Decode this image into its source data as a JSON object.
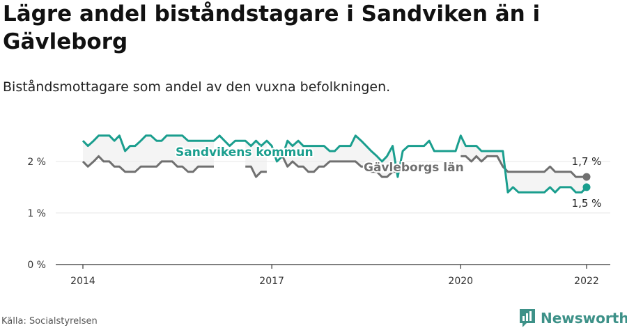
{
  "title": "Lägre andel biståndstagare i Sandviken än i Gävleborg",
  "subtitle": "Biståndsmottagare som andel av den vuxna befolkningen.",
  "source": "Källa: Socialstyrelsen",
  "brand": {
    "name": "Newsworthy",
    "color": "#3d9188"
  },
  "chart_data": {
    "type": "line",
    "x_ticks": [
      "2014",
      "2017",
      "2020",
      "2022"
    ],
    "y_ticks": [
      "0 %",
      "1 %",
      "2 %"
    ],
    "ylim": [
      0,
      2.7
    ],
    "xlim": [
      2013.6,
      2022.4
    ],
    "series": [
      {
        "name": "Sandvikens kommun",
        "color": "#1a9e8e",
        "end_label": "1,5 %",
        "points": [
          [
            2014.0,
            2.4
          ],
          [
            2014.08,
            2.3
          ],
          [
            2014.17,
            2.4
          ],
          [
            2014.25,
            2.5
          ],
          [
            2014.33,
            2.5
          ],
          [
            2014.42,
            2.5
          ],
          [
            2014.5,
            2.4
          ],
          [
            2014.58,
            2.5
          ],
          [
            2014.67,
            2.2
          ],
          [
            2014.75,
            2.3
          ],
          [
            2014.83,
            2.3
          ],
          [
            2014.92,
            2.4
          ],
          [
            2015.0,
            2.5
          ],
          [
            2015.08,
            2.5
          ],
          [
            2015.17,
            2.4
          ],
          [
            2015.25,
            2.4
          ],
          [
            2015.33,
            2.5
          ],
          [
            2015.42,
            2.5
          ],
          [
            2015.5,
            2.5
          ],
          [
            2015.58,
            2.5
          ],
          [
            2015.67,
            2.4
          ],
          [
            2015.75,
            2.4
          ],
          [
            2015.83,
            2.4
          ],
          [
            2015.92,
            2.4
          ],
          [
            2016.0,
            2.4
          ],
          [
            2016.08,
            2.4
          ],
          [
            2016.17,
            2.5
          ],
          [
            2016.25,
            2.4
          ],
          [
            2016.33,
            2.3
          ],
          [
            2016.42,
            2.4
          ],
          [
            2016.5,
            2.4
          ],
          [
            2016.58,
            2.4
          ],
          [
            2016.67,
            2.3
          ],
          [
            2016.75,
            2.4
          ],
          [
            2016.83,
            2.3
          ],
          [
            2016.92,
            2.4
          ],
          [
            2017.0,
            2.3
          ],
          [
            2017.08,
            2.0
          ],
          [
            2017.17,
            2.1
          ],
          [
            2017.25,
            2.4
          ],
          [
            2017.33,
            2.3
          ],
          [
            2017.42,
            2.4
          ],
          [
            2017.5,
            2.3
          ],
          [
            2017.58,
            2.3
          ],
          [
            2017.67,
            2.3
          ],
          [
            2017.75,
            2.3
          ],
          [
            2017.83,
            2.3
          ],
          [
            2017.92,
            2.2
          ],
          [
            2018.0,
            2.2
          ],
          [
            2018.08,
            2.3
          ],
          [
            2018.17,
            2.3
          ],
          [
            2018.25,
            2.3
          ],
          [
            2018.33,
            2.5
          ],
          [
            2018.42,
            2.4
          ],
          [
            2018.5,
            2.3
          ],
          [
            2018.58,
            2.2
          ],
          [
            2018.67,
            2.1
          ],
          [
            2018.75,
            2.0
          ],
          [
            2018.83,
            2.1
          ],
          [
            2018.92,
            2.3
          ],
          [
            2019.0,
            1.7
          ],
          [
            2019.08,
            2.2
          ],
          [
            2019.17,
            2.3
          ],
          [
            2019.25,
            2.3
          ],
          [
            2019.33,
            2.3
          ],
          [
            2019.42,
            2.3
          ],
          [
            2019.5,
            2.4
          ],
          [
            2019.58,
            2.2
          ],
          [
            2019.67,
            2.2
          ],
          [
            2019.75,
            2.2
          ],
          [
            2019.83,
            2.2
          ],
          [
            2019.92,
            2.2
          ],
          [
            2020.0,
            2.5
          ],
          [
            2020.08,
            2.3
          ],
          [
            2020.17,
            2.3
          ],
          [
            2020.25,
            2.3
          ],
          [
            2020.33,
            2.2
          ],
          [
            2020.42,
            2.2
          ],
          [
            2020.5,
            2.2
          ],
          [
            2020.58,
            2.2
          ],
          [
            2020.67,
            2.2
          ],
          [
            2020.75,
            1.4
          ],
          [
            2020.83,
            1.5
          ],
          [
            2020.92,
            1.4
          ],
          [
            2021.0,
            1.4
          ],
          [
            2021.08,
            1.4
          ],
          [
            2021.17,
            1.4
          ],
          [
            2021.25,
            1.4
          ],
          [
            2021.33,
            1.4
          ],
          [
            2021.42,
            1.5
          ],
          [
            2021.5,
            1.4
          ],
          [
            2021.58,
            1.5
          ],
          [
            2021.67,
            1.5
          ],
          [
            2021.75,
            1.5
          ],
          [
            2021.83,
            1.4
          ],
          [
            2021.92,
            1.4
          ],
          [
            2022.0,
            1.5
          ]
        ]
      },
      {
        "name": "Gävleborgs län",
        "color": "#707070",
        "end_label": "1,7 %",
        "points": [
          [
            2014.0,
            2.0
          ],
          [
            2014.08,
            1.9
          ],
          [
            2014.17,
            2.0
          ],
          [
            2014.25,
            2.1
          ],
          [
            2014.33,
            2.0
          ],
          [
            2014.42,
            2.0
          ],
          [
            2014.5,
            1.9
          ],
          [
            2014.58,
            1.9
          ],
          [
            2014.67,
            1.8
          ],
          [
            2014.75,
            1.8
          ],
          [
            2014.83,
            1.8
          ],
          [
            2014.92,
            1.9
          ],
          [
            2015.0,
            1.9
          ],
          [
            2015.08,
            1.9
          ],
          [
            2015.17,
            1.9
          ],
          [
            2015.25,
            2.0
          ],
          [
            2015.33,
            2.0
          ],
          [
            2015.42,
            2.0
          ],
          [
            2015.5,
            1.9
          ],
          [
            2015.58,
            1.9
          ],
          [
            2015.67,
            1.8
          ],
          [
            2015.75,
            1.8
          ],
          [
            2015.83,
            1.9
          ],
          [
            2015.92,
            1.9
          ],
          [
            2016.0,
            1.9
          ],
          [
            2016.08,
            1.9
          ],
          [
            null,
            null
          ],
          [
            2016.58,
            1.9
          ],
          [
            2016.67,
            1.9
          ],
          [
            2016.75,
            1.7
          ],
          [
            2016.83,
            1.8
          ],
          [
            2016.92,
            1.8
          ],
          [
            null,
            null
          ],
          [
            2017.17,
            2.1
          ],
          [
            2017.25,
            1.9
          ],
          [
            2017.33,
            2.0
          ],
          [
            2017.42,
            1.9
          ],
          [
            2017.5,
            1.9
          ],
          [
            2017.58,
            1.8
          ],
          [
            2017.67,
            1.8
          ],
          [
            2017.75,
            1.9
          ],
          [
            2017.83,
            1.9
          ],
          [
            2017.92,
            2.0
          ],
          [
            2018.0,
            2.0
          ],
          [
            2018.08,
            2.0
          ],
          [
            2018.17,
            2.0
          ],
          [
            2018.25,
            2.0
          ],
          [
            2018.33,
            2.0
          ],
          [
            2018.42,
            1.9
          ],
          [
            2018.5,
            1.9
          ],
          [
            2018.58,
            1.8
          ],
          [
            2018.67,
            1.8
          ],
          [
            2018.75,
            1.7
          ],
          [
            2018.83,
            1.7
          ],
          [
            2018.92,
            1.8
          ],
          [
            2019.0,
            1.8
          ],
          [
            null,
            null
          ],
          [
            2020.0,
            2.1
          ],
          [
            2020.08,
            2.1
          ],
          [
            2020.17,
            2.0
          ],
          [
            2020.25,
            2.1
          ],
          [
            2020.33,
            2.0
          ],
          [
            2020.42,
            2.1
          ],
          [
            2020.5,
            2.1
          ],
          [
            2020.58,
            2.1
          ],
          [
            2020.67,
            1.9
          ],
          [
            2020.75,
            1.8
          ],
          [
            2020.83,
            1.8
          ],
          [
            2020.92,
            1.8
          ],
          [
            2021.0,
            1.8
          ],
          [
            2021.08,
            1.8
          ],
          [
            2021.17,
            1.8
          ],
          [
            2021.25,
            1.8
          ],
          [
            2021.33,
            1.8
          ],
          [
            2021.42,
            1.9
          ],
          [
            2021.5,
            1.8
          ],
          [
            2021.58,
            1.8
          ],
          [
            2021.67,
            1.8
          ],
          [
            2021.75,
            1.8
          ],
          [
            2021.83,
            1.7
          ],
          [
            2021.92,
            1.7
          ],
          [
            2022.0,
            1.7
          ]
        ]
      }
    ]
  }
}
